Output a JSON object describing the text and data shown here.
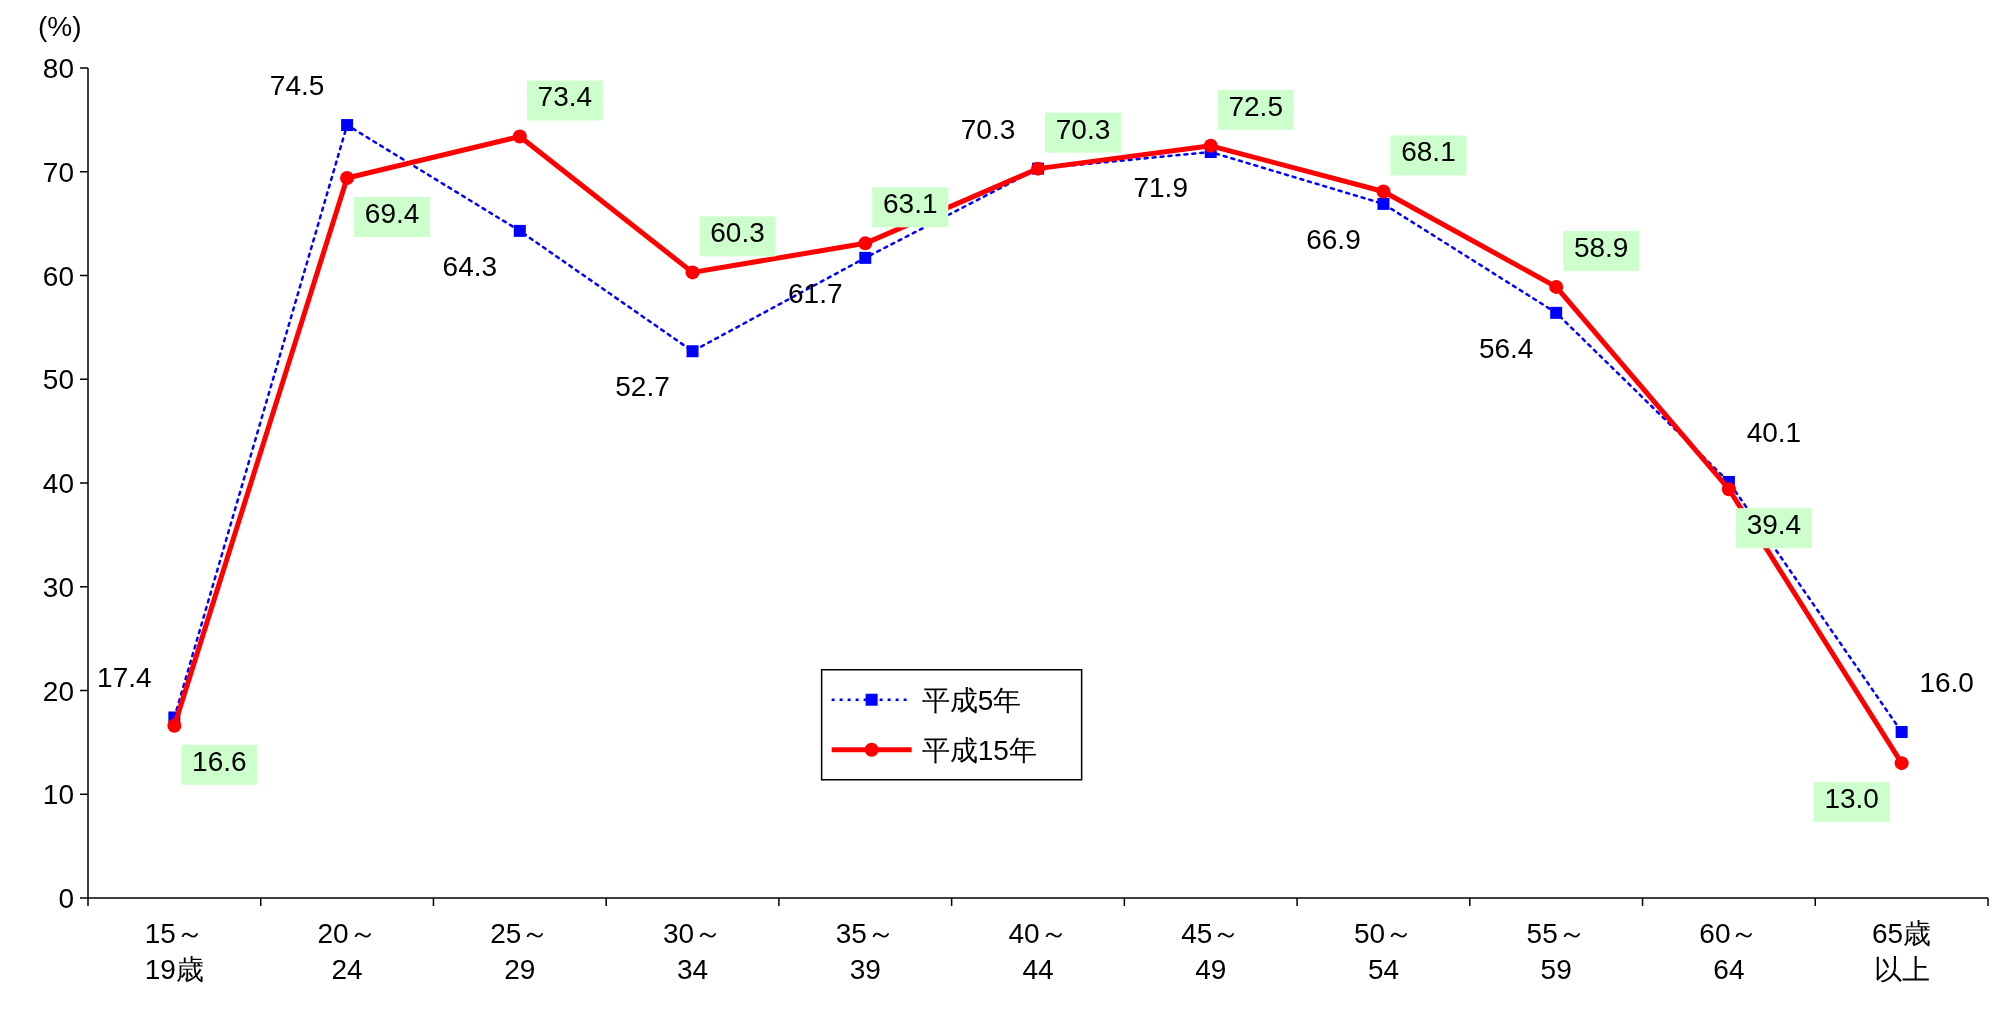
{
  "chart_data": {
    "type": "line",
    "ylabel": "(%)",
    "categories": [
      "15～19歳",
      "20～24",
      "25～29",
      "30～34",
      "35～39",
      "40～44",
      "45～49",
      "50～54",
      "55～59",
      "60～64",
      "65歳以上"
    ],
    "series": [
      {
        "name": "平成5年",
        "color": "#0000ff",
        "marker": "square",
        "line_style": "dotted",
        "values": [
          17.4,
          74.5,
          64.3,
          52.7,
          61.7,
          70.3,
          71.9,
          66.9,
          56.4,
          40.1,
          16.0
        ],
        "value_labels": [
          "17.4",
          "74.5",
          "64.3",
          "52.7",
          "61.7",
          "70.3",
          "71.9",
          "66.9",
          "56.4",
          "40.1",
          "16.0"
        ]
      },
      {
        "name": "平成15年",
        "color": "#ff0000",
        "marker": "circle",
        "line_style": "solid",
        "values": [
          16.6,
          69.4,
          73.4,
          60.3,
          63.1,
          70.3,
          72.5,
          68.1,
          58.9,
          39.4,
          13.0
        ],
        "value_labels": [
          "16.6",
          "69.4",
          "73.4",
          "60.3",
          "63.1",
          "70.3",
          "72.5",
          "68.1",
          "58.9",
          "39.4",
          "13.0"
        ]
      }
    ],
    "ylim": [
      0,
      80
    ],
    "yticks": [
      0,
      10,
      20,
      30,
      40,
      50,
      60,
      70,
      80
    ],
    "grid": false,
    "legend": "bottom"
  }
}
